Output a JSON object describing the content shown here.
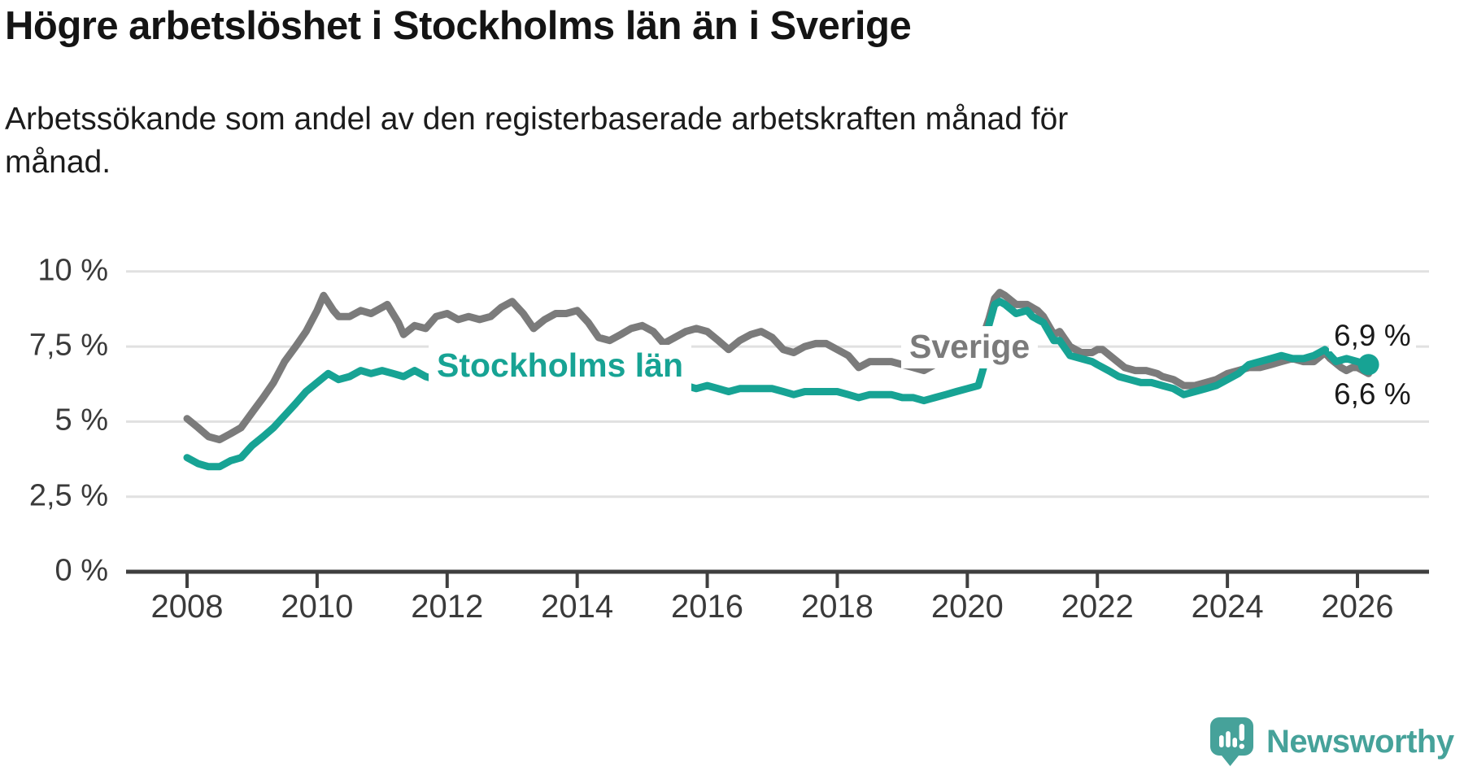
{
  "chart_data": {
    "type": "line",
    "title": "Högre arbetslöshet i Stockholms län än i Sverige",
    "subtitle_lines": [
      "Arbetssökande som andel av den registerbaserade arbetskraften månad för",
      "månad."
    ],
    "xlabel": "",
    "ylabel": "",
    "ylim": [
      0,
      10.5
    ],
    "xlim": [
      2007.1,
      2027.1
    ],
    "grid": "horizontal",
    "legend_position": "inline-labels",
    "y_ticks": [
      {
        "value": 10,
        "label": "10 %"
      },
      {
        "value": 7.5,
        "label": "7,5 %"
      },
      {
        "value": 5,
        "label": "5 %"
      },
      {
        "value": 2.5,
        "label": "2,5 %"
      },
      {
        "value": 0,
        "label": "0 %"
      }
    ],
    "x_ticks": [
      {
        "year": 2008,
        "label": "2008"
      },
      {
        "year": 2010,
        "label": "2010"
      },
      {
        "year": 2012,
        "label": "2012"
      },
      {
        "year": 2014,
        "label": "2014"
      },
      {
        "year": 2016,
        "label": "2016"
      },
      {
        "year": 2018,
        "label": "2018"
      },
      {
        "year": 2020,
        "label": "2020"
      },
      {
        "year": 2022,
        "label": "2022"
      },
      {
        "year": 2024,
        "label": "2024"
      },
      {
        "year": 2026,
        "label": "2026"
      }
    ],
    "series": [
      {
        "name": "Sverige",
        "color": "#7b7b7b",
        "points": [
          [
            2008.0,
            5.1
          ],
          [
            2008.17,
            4.8
          ],
          [
            2008.33,
            4.5
          ],
          [
            2008.5,
            4.4
          ],
          [
            2008.67,
            4.6
          ],
          [
            2008.83,
            4.8
          ],
          [
            2009.0,
            5.3
          ],
          [
            2009.17,
            5.8
          ],
          [
            2009.33,
            6.3
          ],
          [
            2009.5,
            7.0
          ],
          [
            2009.67,
            7.5
          ],
          [
            2009.83,
            8.0
          ],
          [
            2010.0,
            8.7
          ],
          [
            2010.1,
            9.2
          ],
          [
            2010.25,
            8.7
          ],
          [
            2010.33,
            8.5
          ],
          [
            2010.5,
            8.5
          ],
          [
            2010.67,
            8.7
          ],
          [
            2010.83,
            8.6
          ],
          [
            2011.0,
            8.8
          ],
          [
            2011.08,
            8.9
          ],
          [
            2011.25,
            8.3
          ],
          [
            2011.33,
            7.9
          ],
          [
            2011.5,
            8.2
          ],
          [
            2011.67,
            8.1
          ],
          [
            2011.83,
            8.5
          ],
          [
            2012.0,
            8.6
          ],
          [
            2012.17,
            8.4
          ],
          [
            2012.33,
            8.5
          ],
          [
            2012.5,
            8.4
          ],
          [
            2012.67,
            8.5
          ],
          [
            2012.83,
            8.8
          ],
          [
            2013.0,
            9.0
          ],
          [
            2013.17,
            8.6
          ],
          [
            2013.33,
            8.1
          ],
          [
            2013.5,
            8.4
          ],
          [
            2013.67,
            8.6
          ],
          [
            2013.83,
            8.6
          ],
          [
            2014.0,
            8.7
          ],
          [
            2014.17,
            8.3
          ],
          [
            2014.33,
            7.8
          ],
          [
            2014.5,
            7.7
          ],
          [
            2014.67,
            7.9
          ],
          [
            2014.83,
            8.1
          ],
          [
            2015.0,
            8.2
          ],
          [
            2015.17,
            8.0
          ],
          [
            2015.33,
            7.6
          ],
          [
            2015.5,
            7.8
          ],
          [
            2015.67,
            8.0
          ],
          [
            2015.83,
            8.1
          ],
          [
            2016.0,
            8.0
          ],
          [
            2016.17,
            7.7
          ],
          [
            2016.33,
            7.4
          ],
          [
            2016.5,
            7.7
          ],
          [
            2016.67,
            7.9
          ],
          [
            2016.83,
            8.0
          ],
          [
            2017.0,
            7.8
          ],
          [
            2017.17,
            7.4
          ],
          [
            2017.33,
            7.3
          ],
          [
            2017.5,
            7.5
          ],
          [
            2017.67,
            7.6
          ],
          [
            2017.83,
            7.6
          ],
          [
            2018.0,
            7.4
          ],
          [
            2018.17,
            7.2
          ],
          [
            2018.33,
            6.8
          ],
          [
            2018.5,
            7.0
          ],
          [
            2018.67,
            7.0
          ],
          [
            2018.83,
            7.0
          ],
          [
            2019.0,
            6.9
          ],
          [
            2019.17,
            6.8
          ],
          [
            2019.33,
            6.7
          ],
          [
            2019.5,
            6.9
          ],
          [
            2019.67,
            7.0
          ],
          [
            2019.83,
            7.1
          ],
          [
            2020.0,
            7.2
          ],
          [
            2020.17,
            7.4
          ],
          [
            2020.33,
            8.4
          ],
          [
            2020.42,
            9.1
          ],
          [
            2020.5,
            9.3
          ],
          [
            2020.58,
            9.2
          ],
          [
            2020.75,
            8.9
          ],
          [
            2020.92,
            8.9
          ],
          [
            2021.0,
            8.8
          ],
          [
            2021.08,
            8.7
          ],
          [
            2021.17,
            8.5
          ],
          [
            2021.33,
            7.9
          ],
          [
            2021.42,
            8.0
          ],
          [
            2021.58,
            7.5
          ],
          [
            2021.75,
            7.3
          ],
          [
            2021.92,
            7.3
          ],
          [
            2022.0,
            7.4
          ],
          [
            2022.08,
            7.4
          ],
          [
            2022.25,
            7.1
          ],
          [
            2022.42,
            6.8
          ],
          [
            2022.58,
            6.7
          ],
          [
            2022.75,
            6.7
          ],
          [
            2022.92,
            6.6
          ],
          [
            2023.0,
            6.5
          ],
          [
            2023.17,
            6.4
          ],
          [
            2023.33,
            6.2
          ],
          [
            2023.5,
            6.2
          ],
          [
            2023.67,
            6.3
          ],
          [
            2023.83,
            6.4
          ],
          [
            2024.0,
            6.6
          ],
          [
            2024.17,
            6.7
          ],
          [
            2024.33,
            6.8
          ],
          [
            2024.5,
            6.8
          ],
          [
            2024.67,
            6.9
          ],
          [
            2024.83,
            7.0
          ],
          [
            2025.0,
            7.1
          ],
          [
            2025.17,
            7.0
          ],
          [
            2025.33,
            7.0
          ],
          [
            2025.5,
            7.3
          ],
          [
            2025.58,
            7.1
          ],
          [
            2025.75,
            6.8
          ],
          [
            2025.83,
            6.7
          ],
          [
            2025.92,
            6.8
          ],
          [
            2026.0,
            6.8
          ],
          [
            2026.17,
            6.6
          ]
        ]
      },
      {
        "name": "Stockholms län",
        "color": "#17a394",
        "points": [
          [
            2008.0,
            3.8
          ],
          [
            2008.17,
            3.6
          ],
          [
            2008.33,
            3.5
          ],
          [
            2008.5,
            3.5
          ],
          [
            2008.67,
            3.7
          ],
          [
            2008.83,
            3.8
          ],
          [
            2009.0,
            4.2
          ],
          [
            2009.17,
            4.5
          ],
          [
            2009.33,
            4.8
          ],
          [
            2009.5,
            5.2
          ],
          [
            2009.67,
            5.6
          ],
          [
            2009.83,
            6.0
          ],
          [
            2010.0,
            6.3
          ],
          [
            2010.17,
            6.6
          ],
          [
            2010.33,
            6.4
          ],
          [
            2010.5,
            6.5
          ],
          [
            2010.67,
            6.7
          ],
          [
            2010.83,
            6.6
          ],
          [
            2011.0,
            6.7
          ],
          [
            2011.17,
            6.6
          ],
          [
            2011.33,
            6.5
          ],
          [
            2011.5,
            6.7
          ],
          [
            2011.67,
            6.5
          ],
          [
            2011.83,
            6.4
          ],
          [
            2012.0,
            6.5
          ],
          [
            2012.17,
            6.4
          ],
          [
            2012.33,
            6.4
          ],
          [
            2012.5,
            6.4
          ],
          [
            2012.67,
            6.5
          ],
          [
            2012.83,
            6.6
          ],
          [
            2013.0,
            6.7
          ],
          [
            2013.17,
            6.5
          ],
          [
            2013.33,
            6.4
          ],
          [
            2013.5,
            6.5
          ],
          [
            2013.67,
            6.4
          ],
          [
            2013.83,
            6.4
          ],
          [
            2014.0,
            6.5
          ],
          [
            2014.17,
            6.3
          ],
          [
            2014.33,
            6.2
          ],
          [
            2014.5,
            6.3
          ],
          [
            2014.67,
            6.3
          ],
          [
            2014.83,
            6.3
          ],
          [
            2015.0,
            6.3
          ],
          [
            2015.17,
            6.2
          ],
          [
            2015.33,
            6.1
          ],
          [
            2015.5,
            6.2
          ],
          [
            2015.67,
            6.2
          ],
          [
            2015.83,
            6.1
          ],
          [
            2016.0,
            6.2
          ],
          [
            2016.17,
            6.1
          ],
          [
            2016.33,
            6.0
          ],
          [
            2016.5,
            6.1
          ],
          [
            2016.67,
            6.1
          ],
          [
            2016.83,
            6.1
          ],
          [
            2017.0,
            6.1
          ],
          [
            2017.17,
            6.0
          ],
          [
            2017.33,
            5.9
          ],
          [
            2017.5,
            6.0
          ],
          [
            2017.67,
            6.0
          ],
          [
            2017.83,
            6.0
          ],
          [
            2018.0,
            6.0
          ],
          [
            2018.17,
            5.9
          ],
          [
            2018.33,
            5.8
          ],
          [
            2018.5,
            5.9
          ],
          [
            2018.67,
            5.9
          ],
          [
            2018.83,
            5.9
          ],
          [
            2019.0,
            5.8
          ],
          [
            2019.17,
            5.8
          ],
          [
            2019.33,
            5.7
          ],
          [
            2019.5,
            5.8
          ],
          [
            2019.67,
            5.9
          ],
          [
            2019.83,
            6.0
          ],
          [
            2020.0,
            6.1
          ],
          [
            2020.17,
            6.2
          ],
          [
            2020.25,
            6.8
          ],
          [
            2020.33,
            8.2
          ],
          [
            2020.42,
            8.9
          ],
          [
            2020.5,
            9.0
          ],
          [
            2020.58,
            8.9
          ],
          [
            2020.75,
            8.6
          ],
          [
            2020.92,
            8.7
          ],
          [
            2021.0,
            8.5
          ],
          [
            2021.08,
            8.4
          ],
          [
            2021.17,
            8.3
          ],
          [
            2021.33,
            7.7
          ],
          [
            2021.42,
            7.7
          ],
          [
            2021.58,
            7.2
          ],
          [
            2021.75,
            7.1
          ],
          [
            2021.92,
            7.0
          ],
          [
            2022.0,
            6.9
          ],
          [
            2022.17,
            6.7
          ],
          [
            2022.33,
            6.5
          ],
          [
            2022.5,
            6.4
          ],
          [
            2022.67,
            6.3
          ],
          [
            2022.83,
            6.3
          ],
          [
            2023.0,
            6.2
          ],
          [
            2023.17,
            6.1
          ],
          [
            2023.33,
            5.9
          ],
          [
            2023.5,
            6.0
          ],
          [
            2023.67,
            6.1
          ],
          [
            2023.83,
            6.2
          ],
          [
            2024.0,
            6.4
          ],
          [
            2024.17,
            6.6
          ],
          [
            2024.33,
            6.9
          ],
          [
            2024.5,
            7.0
          ],
          [
            2024.67,
            7.1
          ],
          [
            2024.83,
            7.2
          ],
          [
            2025.0,
            7.1
          ],
          [
            2025.17,
            7.1
          ],
          [
            2025.33,
            7.2
          ],
          [
            2025.5,
            7.4
          ],
          [
            2025.67,
            7.0
          ],
          [
            2025.83,
            7.1
          ],
          [
            2026.0,
            7.0
          ],
          [
            2026.17,
            6.9
          ]
        ]
      }
    ],
    "end_labels": [
      {
        "series": "Stockholms län",
        "text": "6,9 %"
      },
      {
        "series": "Sverige",
        "text": "6,6 %"
      }
    ],
    "latest_point": {
      "series": "Stockholms län",
      "year": 2026.17,
      "value": 6.9
    }
  },
  "footer": {
    "brand": "Newsworthy"
  },
  "colors": {
    "grid": "#e1e1e1",
    "axis": "#3f3f3f",
    "sverige_line": "#7b7b7b",
    "stockholm_line": "#17a394",
    "logo_teal": "#46a29a",
    "text_dark": "#1a1a1a",
    "tick_text": "#3a3a3a"
  }
}
